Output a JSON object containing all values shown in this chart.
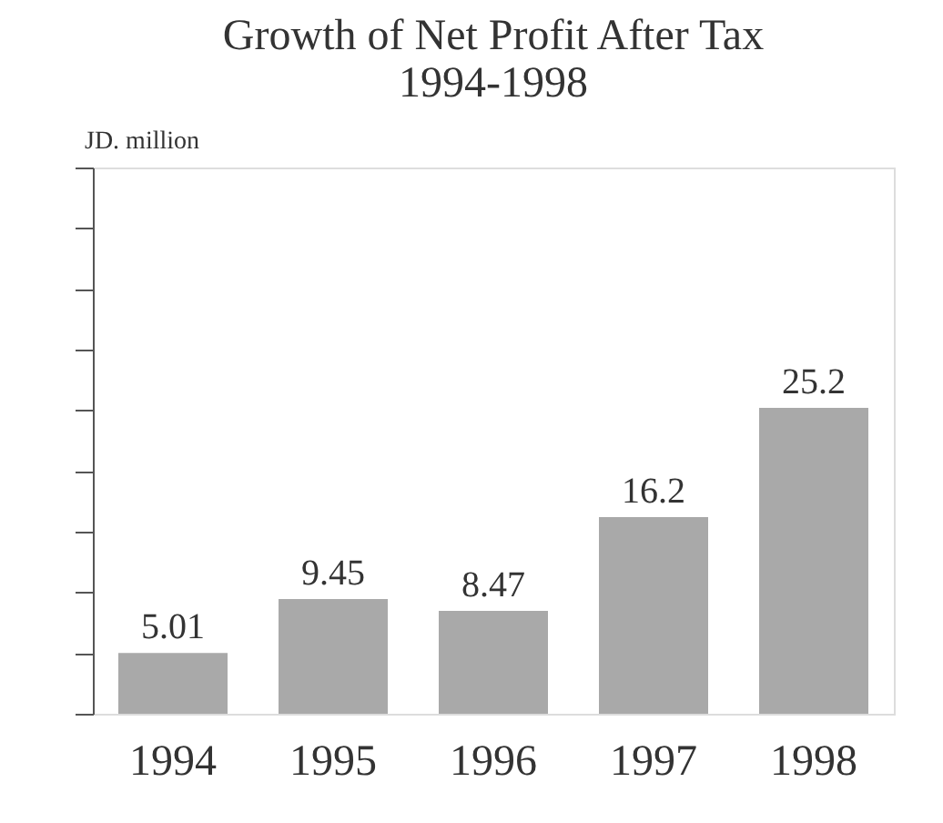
{
  "chart_data": {
    "type": "bar",
    "title": [
      "Growth of Net Profit After Tax",
      "1994-1998"
    ],
    "ylabel": "JD. million",
    "categories": [
      "1994",
      "1995",
      "1996",
      "1997",
      "1998"
    ],
    "values": [
      5.01,
      9.45,
      8.47,
      16.2,
      25.2
    ],
    "color": "#a9a9a9",
    "ylim": [
      0,
      45
    ],
    "yticks": [
      {
        "value": 0,
        "label": null
      },
      {
        "value": 5,
        "label": null
      },
      {
        "value": 10,
        "label": null
      },
      {
        "value": 15,
        "label": null
      },
      {
        "value": 20,
        "label": null
      },
      {
        "value": 25,
        "label": null
      },
      {
        "value": 30,
        "label": null
      },
      {
        "value": 35,
        "label": null
      },
      {
        "value": 40,
        "label": null
      },
      {
        "value": 45,
        "label": null
      }
    ],
    "tick_labels": "x",
    "data_labels": true,
    "grid": false
  }
}
